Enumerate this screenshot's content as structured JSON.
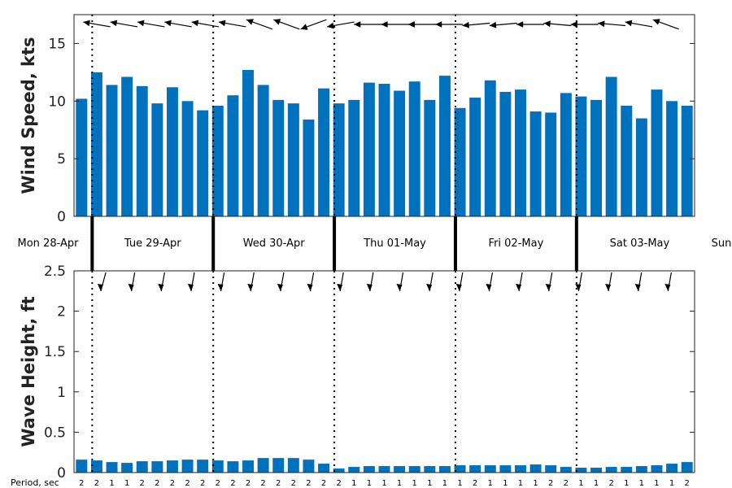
{
  "chart_data": [
    {
      "type": "bar",
      "ylabel": "Wind Speed, kts",
      "ylim": [
        0,
        17.5
      ],
      "yticks": [
        "0",
        "5",
        "10",
        "15"
      ],
      "color": "#0072BD",
      "values": [
        10.2,
        12.5,
        11.4,
        12.1,
        11.3,
        9.8,
        11.2,
        10.0,
        9.2,
        9.6,
        10.5,
        12.7,
        11.4,
        10.1,
        9.8,
        8.4,
        11.1,
        9.8,
        10.1,
        11.6,
        11.5,
        10.9,
        11.7,
        10.1,
        12.2,
        9.4,
        10.3,
        11.8,
        10.8,
        11.0,
        9.1,
        9.0,
        10.7,
        10.4,
        10.1,
        12.1,
        9.6,
        8.5,
        11.0,
        10.0,
        9.6
      ],
      "direction_arrows_deg": [
        170,
        170,
        170,
        170,
        170,
        170,
        160,
        160,
        200,
        190,
        180,
        180,
        180,
        180,
        185,
        185,
        180,
        175,
        180,
        175,
        170,
        160
      ]
    },
    {
      "type": "bar",
      "ylabel": "Wave Height, ft",
      "ylim": [
        0,
        2.5
      ],
      "yticks": [
        "0",
        "0.5",
        "1",
        "1.5",
        "2",
        "2.5"
      ],
      "color": "#0072BD",
      "values": [
        0.16,
        0.15,
        0.13,
        0.12,
        0.14,
        0.14,
        0.15,
        0.16,
        0.16,
        0.15,
        0.14,
        0.15,
        0.18,
        0.18,
        0.18,
        0.16,
        0.11,
        0.05,
        0.07,
        0.08,
        0.08,
        0.08,
        0.08,
        0.08,
        0.08,
        0.09,
        0.09,
        0.09,
        0.09,
        0.09,
        0.1,
        0.09,
        0.07,
        0.06,
        0.06,
        0.07,
        0.07,
        0.08,
        0.09,
        0.11,
        0.13
      ],
      "period_label": "Period, sec",
      "periods": [
        "2",
        "2",
        "1",
        "1",
        "2",
        "2",
        "2",
        "2",
        "2",
        "2",
        "2",
        "2",
        "2",
        "2",
        "2",
        "2",
        "2",
        "2",
        "1",
        "1",
        "1",
        "1",
        "1",
        "1",
        "1",
        "1",
        "2",
        "1",
        "1",
        "1",
        "1",
        "2",
        "2",
        "1",
        "1",
        "2",
        "1",
        "1",
        "1",
        "1",
        "2"
      ],
      "direction_arrows_deg": [
        15,
        10,
        10,
        10,
        10,
        10,
        10,
        10,
        10,
        10,
        10,
        10,
        10,
        10,
        10,
        10,
        10,
        10,
        10,
        10
      ]
    }
  ],
  "days": [
    "Mon 28-Apr",
    "Tue 29-Apr",
    "Wed 30-Apr",
    "Thu 01-May",
    "Fri 02-May",
    "Sat 03-May",
    "Sun"
  ],
  "day_boundaries": [
    1.2,
    9.2,
    17.2,
    25.2,
    33.2
  ]
}
